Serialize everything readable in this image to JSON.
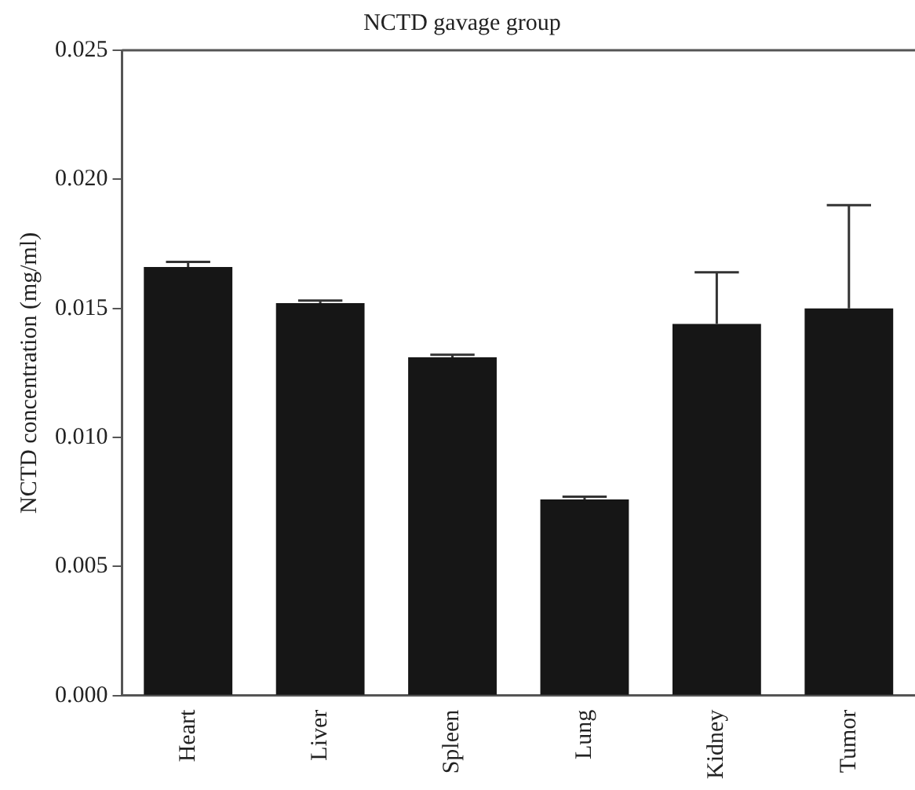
{
  "chart_data": {
    "type": "bar",
    "title": "NCTD gavage group",
    "ylabel": "NCTD concentration (mg/ml)",
    "categories": [
      "Heart",
      "Liver",
      "Spleen",
      "Lung",
      "Kidney",
      "Tumor"
    ],
    "values": [
      0.0166,
      0.0152,
      0.0131,
      0.0076,
      0.0144,
      0.015
    ],
    "errors": [
      [
        0.0166,
        0.0168
      ],
      [
        0.0152,
        0.0153
      ],
      [
        0.0131,
        0.0132
      ],
      [
        0.0076,
        0.0077
      ],
      [
        0.0144,
        0.0164
      ],
      [
        0.015,
        0.019
      ]
    ],
    "color": "#161616",
    "ylim": [
      0,
      0.025
    ],
    "yticks": [
      {
        "value": 0,
        "label": "0.000"
      },
      {
        "value": 0.005,
        "label": "0.005"
      },
      {
        "value": 0.01,
        "label": "0.010"
      },
      {
        "value": 0.015,
        "label": "0.015"
      },
      {
        "value": 0.02,
        "label": "0.020"
      },
      {
        "value": 0.025,
        "label": "0.025"
      }
    ],
    "grid": false,
    "legend": false
  }
}
